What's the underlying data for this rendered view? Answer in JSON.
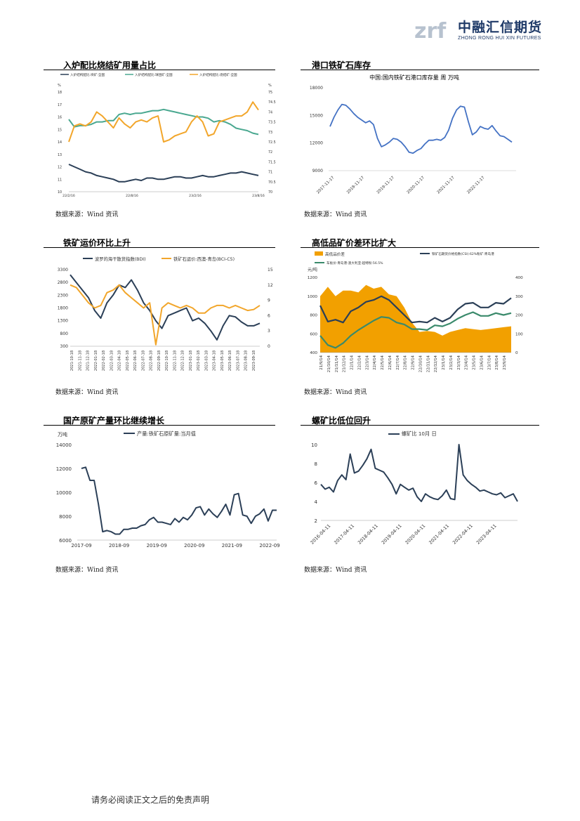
{
  "header": {
    "logo_cn": "中融汇信期货",
    "logo_en": "ZHONG RONG HUI XIN FUTURES",
    "logo_mark": "zrf"
  },
  "footer": {
    "disclaimer": "请务必阅读正文之后的免责声明"
  },
  "source_label": "数据来源：Wind 资讯",
  "panels": [
    {
      "title": "入炉配比烧结矿用量占比"
    },
    {
      "title": "港口铁矿石库存"
    },
    {
      "title": "铁矿运价环比上升"
    },
    {
      "title": "高低品矿价差环比扩大"
    },
    {
      "title": "国产原矿产量环比继续增长"
    },
    {
      "title": "螺矿比低位回升"
    }
  ],
  "chart_data": [
    {
      "type": "line",
      "legend": [
        "入炉结构配比:块矿:全国",
        "入炉结构配比:球团矿:全国",
        "入炉结构配比:烧结矿:全国"
      ],
      "left_unit": "%",
      "right_unit": "%",
      "x_ticks": [
        "22/2/16",
        "22/8/16",
        "23/2/16",
        "23/8/16"
      ],
      "ylim_left": [
        10,
        18
      ],
      "yticks_left": [
        10,
        11,
        12,
        13,
        14,
        15,
        16,
        17,
        18
      ],
      "ylim_right": [
        70,
        75
      ],
      "yticks_right": [
        70,
        70.5,
        71,
        71.5,
        72,
        72.5,
        73,
        73.5,
        74,
        74.5,
        75
      ],
      "colors": [
        "#2b3f57",
        "#4aa890",
        "#f2a62b"
      ],
      "series": [
        {
          "name": "入炉结构配比:块矿:全国",
          "axis": "left",
          "values": [
            12.2,
            12,
            11.8,
            11.6,
            11.5,
            11.3,
            11.2,
            11.1,
            11,
            10.8,
            10.8,
            10.9,
            11,
            10.9,
            11.1,
            11.1,
            11,
            11,
            11.1,
            11.2,
            11.2,
            11.1,
            11.1,
            11.2,
            11.3,
            11.2,
            11.2,
            11.3,
            11.4,
            11.5,
            11.5,
            11.6,
            11.5,
            11.4,
            11.3
          ]
        },
        {
          "name": "入炉结构配比:球团矿:全国",
          "axis": "left",
          "values": [
            15.8,
            15.2,
            15.3,
            15.3,
            15.4,
            15.6,
            15.6,
            15.7,
            15.7,
            16.2,
            16.3,
            16.2,
            16.3,
            16.3,
            16.4,
            16.5,
            16.5,
            16.6,
            16.5,
            16.4,
            16.3,
            16.2,
            16.1,
            16,
            16,
            15.9,
            15.6,
            15.7,
            15.6,
            15.4,
            15.1,
            15,
            14.9,
            14.7,
            14.6
          ]
        },
        {
          "name": "入炉结构配比:烧结矿:全国",
          "axis": "right",
          "values": [
            72.5,
            73.3,
            73.4,
            73.3,
            73.5,
            74,
            73.8,
            73.5,
            73.2,
            73.7,
            73.4,
            73.2,
            73.5,
            73.6,
            73.5,
            73.7,
            73.8,
            72.5,
            72.6,
            72.8,
            72.9,
            73,
            73.5,
            73.8,
            73.5,
            72.8,
            72.9,
            73.5,
            73.6,
            73.7,
            73.8,
            73.8,
            74,
            74.5,
            74.1
          ]
        }
      ]
    },
    {
      "type": "line",
      "title": "中国:国内铁矿石港口库存量 周 万吨",
      "x_ticks": [
        "2017-11-17",
        "2018-11-17",
        "2019-11-17",
        "2020-11-17",
        "2021-11-17",
        "2022-11-17"
      ],
      "ylim": [
        9000,
        18000
      ],
      "yticks": [
        9000,
        12000,
        15000,
        18000
      ],
      "color": "#4472c4",
      "series": [
        {
          "values": [
            13800,
            14800,
            15600,
            16200,
            16100,
            15700,
            15200,
            14800,
            14500,
            14200,
            14400,
            14000,
            12500,
            11600,
            11800,
            12100,
            12500,
            12400,
            12100,
            11600,
            11000,
            10900,
            11200,
            11400,
            11900,
            12300,
            12300,
            12400,
            12300,
            12600,
            13400,
            14700,
            15600,
            16000,
            15900,
            14300,
            12900,
            13200,
            13800,
            13600,
            13500,
            13900,
            13300,
            12800,
            12700,
            12400,
            12100
          ]
        }
      ]
    },
    {
      "type": "line",
      "legend": [
        "波罗的海干散货指数(BDI)",
        "铁矿石运价:西澳-青岛(BCI-C5)"
      ],
      "x_ticks": [
        "2021-10-18",
        "2021-11-18",
        "2021-12-18",
        "2022-01-18",
        "2022-02-18",
        "2022-03-18",
        "2022-04-18",
        "2022-05-18",
        "2022-06-18",
        "2022-07-18",
        "2022-08-18",
        "2022-09-18",
        "2022-10-18",
        "2022-11-18",
        "2022-12-18",
        "2023-01-18",
        "2023-02-18",
        "2023-03-18",
        "2023-04-18",
        "2023-05-18",
        "2023-06-18",
        "2023-07-18",
        "2023-08-18",
        "2023-09-18"
      ],
      "ylim_left": [
        300,
        3300
      ],
      "yticks_left": [
        300,
        800,
        1300,
        1800,
        2300,
        2800,
        3300
      ],
      "ylim_right": [
        0,
        15
      ],
      "yticks_right": [
        0,
        3,
        6,
        9,
        12,
        15
      ],
      "colors": [
        "#2b3f57",
        "#f2a62b"
      ],
      "series": [
        {
          "name": "波罗的海干散货指数(BDI)",
          "axis": "left",
          "values": [
            3100,
            2800,
            2500,
            2200,
            1700,
            1400,
            2000,
            2300,
            2700,
            2600,
            2900,
            2500,
            2000,
            1700,
            1300,
            1000,
            1500,
            1600,
            1700,
            1800,
            1300,
            1400,
            1200,
            900,
            550,
            1100,
            1500,
            1450,
            1250,
            1100,
            1100,
            1200
          ]
        },
        {
          "name": "铁矿石运价:西澳-青岛(BCI-C5)",
          "axis": "right",
          "values": [
            12,
            11.5,
            10,
            8.5,
            7.5,
            8,
            10.5,
            11,
            12,
            10.5,
            9.5,
            8.5,
            7.5,
            8.5,
            0.3,
            7.5,
            8.5,
            8,
            7.5,
            8,
            7.5,
            6.5,
            6.5,
            7.5,
            8,
            8,
            7.5,
            8,
            7.5,
            7,
            7.2,
            8
          ]
        }
      ]
    },
    {
      "type": "area",
      "legend": [
        "高低品价差",
        "铁矿石期货价格指数(CSI):62%粉矿:青岛港",
        "车板价:青岛港:澳大利亚:超特粉:56.5%"
      ],
      "left_unit": "元/吨",
      "x_ticks": [
        "21/9/14",
        "21/10/14",
        "21/11/14",
        "21/12/14",
        "22/1/14",
        "22/2/14",
        "22/3/14",
        "22/4/14",
        "22/5/14",
        "22/6/14",
        "22/7/14",
        "22/8/14",
        "22/9/14",
        "22/10/14",
        "22/11/14",
        "22/12/14",
        "23/1/14",
        "23/2/14",
        "23/3/14",
        "23/4/14",
        "23/5/14",
        "23/6/14",
        "23/7/14",
        "23/8/14",
        "23/9/14"
      ],
      "ylim_left": [
        400,
        1200
      ],
      "yticks_left": [
        400,
        600,
        800,
        1000,
        1200
      ],
      "ylim_right": [
        0,
        400
      ],
      "yticks_right": [
        0,
        100,
        200,
        300,
        400
      ],
      "colors": [
        "#f2a000",
        "#2b3f57",
        "#3a8a6b"
      ],
      "series": [
        {
          "name": "高低品价差",
          "axis": "right",
          "values": [
            300,
            350,
            300,
            330,
            330,
            320,
            360,
            340,
            350,
            310,
            300,
            240,
            160,
            110,
            115,
            110,
            90,
            110,
            120,
            130,
            125,
            120,
            125,
            130,
            135,
            140
          ]
        },
        {
          "name": "铁矿石期货价格指数(CSI):62%粉矿:青岛港",
          "axis": "left",
          "values": [
            900,
            730,
            750,
            720,
            840,
            880,
            940,
            960,
            1000,
            960,
            880,
            800,
            720,
            730,
            720,
            770,
            730,
            770,
            860,
            920,
            930,
            880,
            880,
            930,
            920,
            980
          ]
        },
        {
          "name": "车板价:青岛港:澳大利亚:超特粉:56.5%",
          "axis": "left",
          "values": [
            580,
            480,
            450,
            500,
            580,
            640,
            690,
            740,
            780,
            770,
            720,
            700,
            650,
            650,
            640,
            690,
            680,
            710,
            760,
            800,
            830,
            790,
            790,
            820,
            800,
            820
          ]
        }
      ]
    },
    {
      "type": "line",
      "legend": [
        "产量:铁矿石原矿量:当月值"
      ],
      "left_unit": "万吨",
      "x_ticks": [
        "2017-09",
        "2018-09",
        "2019-09",
        "2020-09",
        "2021-09",
        "2022-09"
      ],
      "ylim": [
        6000,
        14000
      ],
      "yticks": [
        6000,
        8000,
        10000,
        12000,
        14000
      ],
      "color": "#2b3f57",
      "series": [
        {
          "name": "产量:铁矿石原矿量:当月值",
          "values": [
            12000,
            12100,
            11000,
            11000,
            9000,
            6700,
            6800,
            6700,
            6500,
            6500,
            6900,
            6900,
            7000,
            7000,
            7200,
            7300,
            7700,
            7900,
            7500,
            7500,
            7400,
            7300,
            7800,
            7500,
            7900,
            7700,
            8100,
            8700,
            8800,
            8100,
            8600,
            8200,
            7900,
            8400,
            9000,
            8100,
            9800,
            9900,
            8100,
            8000,
            7400,
            8000,
            8200,
            8600,
            7600,
            8500,
            8500
          ]
        }
      ]
    },
    {
      "type": "line",
      "legend": [
        "螺矿比 10月 日"
      ],
      "x_ticks": [
        "2016-04-11",
        "2017-04-11",
        "2018-04-11",
        "2019-04-11",
        "2020-04-11",
        "2021-04-11",
        "2022-04-11",
        "2023-04-11"
      ],
      "ylim": [
        2,
        10
      ],
      "yticks": [
        2,
        4,
        6,
        8,
        10
      ],
      "color": "#2b3f57",
      "series": [
        {
          "name": "螺矿比 10月 日",
          "values": [
            5.8,
            5.3,
            5.5,
            5,
            6.2,
            6.8,
            6.3,
            9,
            7,
            7.2,
            7.8,
            8.5,
            9.5,
            7.5,
            7.3,
            7.1,
            6.5,
            5.8,
            4.8,
            5.8,
            5.5,
            5.2,
            5.4,
            4.5,
            4,
            4.8,
            4.5,
            4.3,
            4.2,
            4.6,
            5.2,
            4.3,
            4.2,
            10,
            6.8,
            6.2,
            5.8,
            5.5,
            5.1,
            5.2,
            5,
            4.8,
            4.7,
            4.9,
            4.4,
            4.6,
            4.8,
            4
          ]
        }
      ]
    }
  ]
}
